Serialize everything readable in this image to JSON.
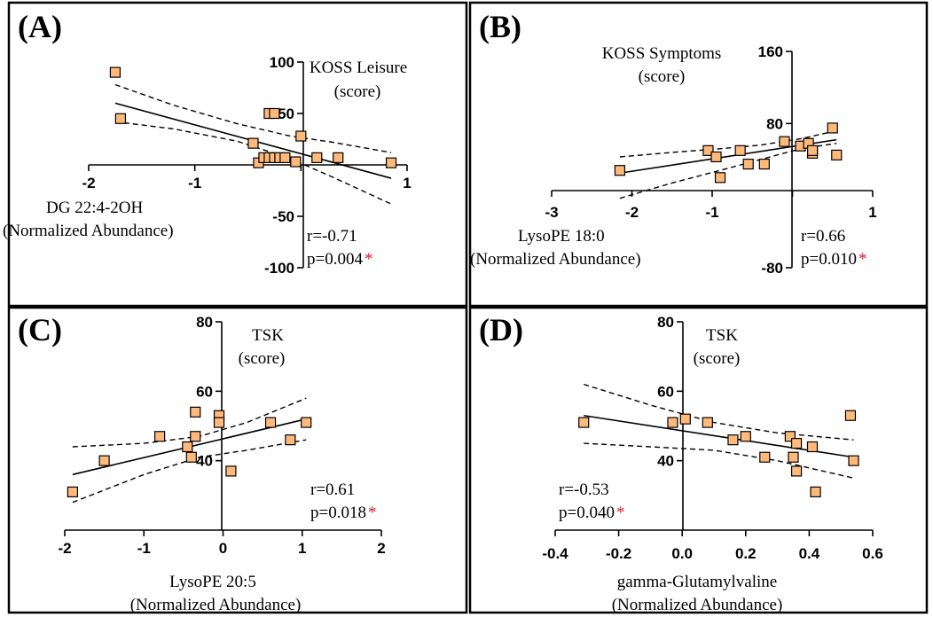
{
  "colors": {
    "marker": "#FFB97A",
    "star": "#E31A1C"
  },
  "chart_data": [
    {
      "type": "scatter",
      "panel": "(A)",
      "ylabel_lines": [
        "KOSS Leisure",
        "(score)"
      ],
      "xlabel_lines": [
        "DG 22:4-2OH",
        "(Normalized Abundance)"
      ],
      "xlim": [
        -2,
        1
      ],
      "ylim": [
        -100,
        100
      ],
      "xticks": [
        -2,
        -1,
        0,
        1
      ],
      "yticks": [
        -100,
        -50,
        50,
        100
      ],
      "xtick_labels": [
        "-2",
        "-1",
        "",
        "1"
      ],
      "ytick_labels": [
        "-100",
        "-50",
        "50",
        "100"
      ],
      "r_text": "r=-0.71",
      "p_text": "p=0.004",
      "star": "*",
      "x": [
        -1.75,
        -1.7,
        -0.45,
        -0.4,
        -0.35,
        -0.3,
        -0.3,
        -0.25,
        -0.25,
        -0.2,
        -0.15,
        -0.05,
        0.0,
        0.15,
        0.35,
        0.85
      ],
      "y": [
        90,
        45,
        21,
        2,
        7,
        50,
        7,
        50,
        7,
        7,
        7,
        3,
        28,
        7,
        7,
        2
      ],
      "fit": {
        "x": [
          -1.75,
          0.85
        ],
        "y": [
          60,
          -13
        ]
      },
      "ci_upper": {
        "x": [
          -1.75,
          -1.2,
          -0.6,
          -0.1,
          0.3,
          0.85
        ],
        "y": [
          78,
          58,
          40,
          28,
          22,
          12
        ]
      },
      "ci_lower": {
        "x": [
          -1.75,
          -1.2,
          -0.6,
          -0.1,
          0.3,
          0.85
        ],
        "y": [
          42,
          35,
          23,
          6,
          -12,
          -38
        ]
      }
    },
    {
      "type": "scatter",
      "panel": "(B)",
      "ylabel_lines": [
        "KOSS Symptoms",
        "(score)"
      ],
      "xlabel_lines": [
        "LysoPE 18:0",
        "(Normalized Abundance)"
      ],
      "xlim": [
        -3,
        1
      ],
      "ylim": [
        -80,
        160
      ],
      "xticks": [
        -3,
        -2,
        -1,
        0,
        1
      ],
      "yticks": [
        -80,
        80,
        160
      ],
      "xtick_labels": [
        "-3",
        "-2",
        "-1",
        "",
        "1"
      ],
      "ytick_labels": [
        "-80",
        "80",
        "160"
      ],
      "r_text": "r=0.66",
      "p_text": "p=0.010",
      "star": "*",
      "x": [
        -2.15,
        -1.05,
        -0.95,
        -0.9,
        -0.65,
        -0.55,
        -0.35,
        -0.1,
        0.1,
        0.2,
        0.25,
        0.25,
        0.5,
        0.55
      ],
      "y": [
        28,
        50,
        43,
        20,
        50,
        35,
        35,
        60,
        55,
        58,
        47,
        50,
        75,
        45
      ],
      "fit": {
        "x": [
          -2.15,
          0.55
        ],
        "y": [
          25,
          62
        ]
      },
      "ci_upper": {
        "x": [
          -2.15,
          -1.5,
          -0.9,
          -0.4,
          0.1,
          0.55
        ],
        "y": [
          43,
          48,
          52,
          56,
          63,
          72
        ]
      },
      "ci_lower": {
        "x": [
          -2.15,
          -1.5,
          -0.9,
          -0.4,
          0.1,
          0.55
        ],
        "y": [
          -3,
          14,
          28,
          40,
          52,
          58
        ]
      }
    },
    {
      "type": "scatter",
      "panel": "(C)",
      "ylabel_lines": [
        "TSK",
        "(score)"
      ],
      "xlabel_lines": [
        "LysoPE 20:5",
        "(Normalized Abundance)"
      ],
      "xlim": [
        -2,
        2
      ],
      "ylim": [
        20,
        80
      ],
      "xticks": [
        -2,
        -1,
        0,
        1,
        2
      ],
      "yticks": [
        40,
        60,
        80
      ],
      "xtick_labels": [
        "-2",
        "-1",
        "0",
        "1",
        "2"
      ],
      "ytick_labels": [
        "40",
        "60",
        "80"
      ],
      "r_text": "r=0.61",
      "p_text": "p=0.018",
      "star": "*",
      "x": [
        -1.9,
        -1.5,
        -0.8,
        -0.45,
        -0.4,
        -0.35,
        -0.35,
        -0.05,
        -0.05,
        0.1,
        0.6,
        0.85,
        1.05
      ],
      "y": [
        31,
        40,
        47,
        44,
        41,
        47,
        54,
        53,
        51,
        37,
        51,
        46,
        51
      ],
      "fit": {
        "x": [
          -1.9,
          1.05
        ],
        "y": [
          36,
          52
        ]
      },
      "ci_upper": {
        "x": [
          -1.9,
          -1.0,
          -0.3,
          0.3,
          1.05
        ],
        "y": [
          44,
          45,
          47,
          51,
          58
        ]
      },
      "ci_lower": {
        "x": [
          -1.9,
          -1.0,
          -0.3,
          0.3,
          1.05
        ],
        "y": [
          28,
          36,
          41,
          43,
          46
        ]
      }
    },
    {
      "type": "scatter",
      "panel": "(D)",
      "ylabel_lines": [
        "TSK",
        "(score)"
      ],
      "xlabel_lines": [
        "gamma-Glutamylvaline",
        "(Normalized Abundance)"
      ],
      "xlim": [
        -0.4,
        0.6
      ],
      "ylim": [
        20,
        80
      ],
      "xticks": [
        -0.4,
        -0.2,
        0.0,
        0.2,
        0.4,
        0.6
      ],
      "yticks": [
        40,
        60,
        80
      ],
      "xtick_labels": [
        "-0.4",
        "-0.2",
        "0.0",
        "0.2",
        "0.4",
        "0.6"
      ],
      "ytick_labels": [
        "40",
        "60",
        "80"
      ],
      "r_text": "r=-0.53",
      "p_text": "p=0.040",
      "star": "*",
      "x": [
        -0.31,
        -0.03,
        0.01,
        0.08,
        0.16,
        0.2,
        0.26,
        0.34,
        0.35,
        0.36,
        0.36,
        0.41,
        0.42,
        0.53,
        0.54
      ],
      "y": [
        51,
        51,
        52,
        51,
        46,
        47,
        41,
        47,
        41,
        37,
        45,
        44,
        31,
        53,
        40
      ],
      "fit": {
        "x": [
          -0.31,
          0.54
        ],
        "y": [
          53,
          41
        ]
      },
      "ci_upper": {
        "x": [
          -0.31,
          -0.1,
          0.1,
          0.3,
          0.54
        ],
        "y": [
          62,
          56,
          51,
          48,
          46
        ]
      },
      "ci_lower": {
        "x": [
          -0.31,
          -0.1,
          0.1,
          0.3,
          0.54
        ],
        "y": [
          45,
          44,
          43,
          40,
          35
        ]
      }
    }
  ]
}
